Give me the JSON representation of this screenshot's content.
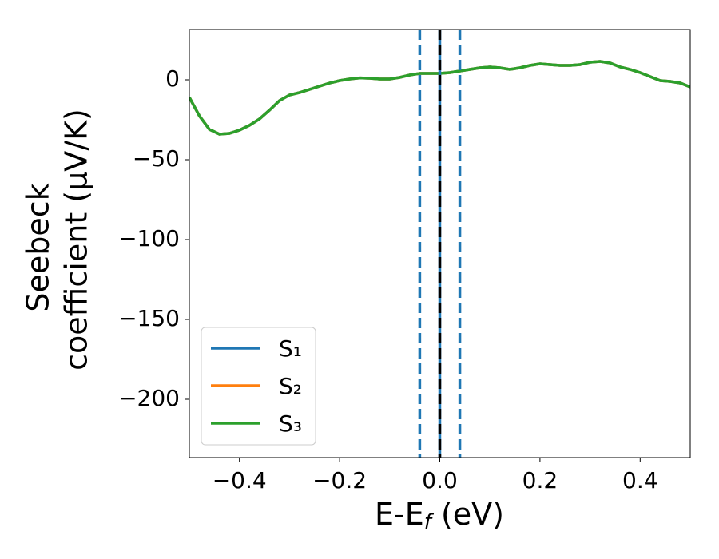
{
  "chart_data": {
    "type": "line",
    "xlabel": [
      "E-E",
      "f",
      " (eV)"
    ],
    "ylabel": [
      "Seebeck",
      "coefficient  (μV/K)"
    ],
    "x": [
      -0.5,
      -0.48,
      -0.46,
      -0.44,
      -0.42,
      -0.4,
      -0.38,
      -0.36,
      -0.34,
      -0.32,
      -0.3,
      -0.28,
      -0.26,
      -0.24,
      -0.22,
      -0.2,
      -0.18,
      -0.16,
      -0.14,
      -0.12,
      -0.1,
      -0.08,
      -0.06,
      -0.04,
      -0.02,
      0,
      0.02,
      0.04,
      0.06,
      0.08,
      0.1,
      0.12,
      0.14,
      0.16,
      0.18,
      0.2,
      0.22,
      0.24,
      0.26,
      0.28,
      0.3,
      0.32,
      0.34,
      0.36,
      0.38,
      0.4,
      0.42,
      0.44,
      0.46,
      0.48,
      0.5
    ],
    "series": [
      {
        "name": "S₁",
        "color": "#1f77b4",
        "values": [
          -11,
          -22.5,
          -31,
          -34,
          -33.5,
          -31.5,
          -28.5,
          -24.5,
          -19,
          -13,
          -9.5,
          -8,
          -6,
          -4,
          -2,
          -0.5,
          0.5,
          1.2,
          1,
          0.5,
          0.5,
          1.5,
          3,
          4,
          4,
          4,
          4.5,
          5.5,
          6.5,
          7.5,
          8,
          7.5,
          6.5,
          7.5,
          9,
          10,
          9.5,
          9,
          9,
          9.5,
          11,
          11.5,
          10.5,
          8,
          6.5,
          4.5,
          2,
          -0.5,
          -1,
          -2,
          -4.5
        ]
      },
      {
        "name": "S₂",
        "color": "#ff7f0e",
        "values": [
          -11,
          -22.5,
          -31,
          -34,
          -33.5,
          -31.5,
          -28.5,
          -24.5,
          -19,
          -13,
          -9.5,
          -8,
          -6,
          -4,
          -2,
          -0.5,
          0.5,
          1.2,
          1,
          0.5,
          0.5,
          1.5,
          3,
          4,
          4,
          4,
          4.5,
          5.5,
          6.5,
          7.5,
          8,
          7.5,
          6.5,
          7.5,
          9,
          10,
          9.5,
          9,
          9,
          9.5,
          11,
          11.5,
          10.5,
          8,
          6.5,
          4.5,
          2,
          -0.5,
          -1,
          -2,
          -4.5
        ]
      },
      {
        "name": "S₃",
        "color": "#2ca02c",
        "values": [
          -11,
          -22.5,
          -31,
          -34,
          -33.5,
          -31.5,
          -28.5,
          -24.5,
          -19,
          -13,
          -9.5,
          -8,
          -6,
          -4,
          -2,
          -0.5,
          0.5,
          1.2,
          1,
          0.5,
          0.5,
          1.5,
          3,
          4,
          4,
          4,
          4.5,
          5.5,
          6.5,
          7.5,
          8,
          7.5,
          6.5,
          7.5,
          9,
          10,
          9.5,
          9,
          9,
          9.5,
          11,
          11.5,
          10.5,
          8,
          6.5,
          4.5,
          2,
          -0.5,
          -1,
          -2,
          -4.5
        ]
      }
    ],
    "vlines": [
      {
        "x": -0.04,
        "color": "#1f77b4",
        "style": "dashed"
      },
      {
        "x": 0.04,
        "color": "#1f77b4",
        "style": "dashed"
      },
      {
        "x": 0,
        "color": "#1f77b4",
        "style": "solid"
      },
      {
        "x": 0,
        "color": "#000000",
        "style": "dashed"
      }
    ],
    "xlim": [
      -0.5,
      0.5
    ],
    "ylim": [
      -236.5,
      31.5
    ],
    "xticks": [
      {
        "value": -0.4,
        "label": "−0.4"
      },
      {
        "value": -0.2,
        "label": "−0.2"
      },
      {
        "value": 0,
        "label": "0.0"
      },
      0.2,
      0.4
    ],
    "yticks": [
      0,
      {
        "value": -50,
        "label": "−50"
      },
      {
        "value": -100,
        "label": "−100"
      },
      {
        "value": -150,
        "label": "−150"
      },
      {
        "value": -200,
        "label": "−200"
      }
    ],
    "legend": "lower left",
    "grid": false
  }
}
